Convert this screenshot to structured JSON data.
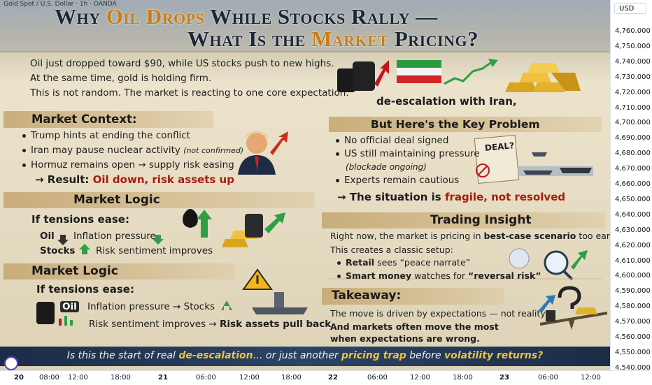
{
  "symbol": "Gold Spot / U.S. Dollar · 1h · OANDA",
  "currency": "USD",
  "price_axis": [
    "4,760.000",
    "4,750.000",
    "4,740.000",
    "4,730.000",
    "4,720.000",
    "4,710.000",
    "4,700.000",
    "4,690.000",
    "4,680.000",
    "4,670.000",
    "4,660.000",
    "4,650.000",
    "4,640.000",
    "4,630.000",
    "4,620.000",
    "4,610.000",
    "4,600.000",
    "4,590.000",
    "4,580.000",
    "4,570.000",
    "4,560.000",
    "4,550.000",
    "4,540.000"
  ],
  "time_axis": [
    "20",
    "08:00",
    "12:00",
    "18:00",
    "21",
    "06:00",
    "12:00",
    "18:00",
    "22",
    "06:00",
    "12:00",
    "18:00",
    "23",
    "06:00",
    "12:00"
  ],
  "title": {
    "line1": [
      "Why ",
      "Oil Drops",
      " While Stocks Rally —"
    ],
    "line2": [
      "What Is the ",
      "Market",
      " Pricing?"
    ]
  },
  "intro": {
    "lines": [
      "Oil just dropped toward $90, while US stocks push to new highs.",
      "At the same time, gold is holding firm.",
      "This is not random. The market is reacting to one core expectation:"
    ],
    "expectation": "de-escalation with Iran,"
  },
  "market_context": {
    "heading": "Market Context:",
    "bullets": [
      "Trump hints at ending the conflict",
      "Iran may pause nuclear activity",
      "Hormuz remains open → supply risk easing"
    ],
    "note": "(not confirmed)",
    "result_label": "→ Result: ",
    "result": "Oil down, risk assets up"
  },
  "key_problem": {
    "heading": "But Here's the Key Problem",
    "bullets": [
      "No official deal signed",
      "US still maintaining pressure",
      "Experts remain cautious"
    ],
    "note": "(blockade ongoing)",
    "sign": "DEAL?",
    "conclusion_label": "→ The situation is ",
    "conclusion": "fragile, not resolved"
  },
  "market_logic_1": {
    "heading": "Market Logic",
    "condition": "If tensions ease:",
    "rows": [
      [
        "Oil",
        "Inflation pressure"
      ],
      [
        "Stocks",
        "Risk sentiment improves"
      ]
    ]
  },
  "market_logic_2": {
    "heading": "Market Logic",
    "condition": "If tensions ease:",
    "badge": "Oil",
    "row1": "Inflation pressure → Stocks",
    "row2": [
      "Risk sentiment improves → ",
      "Risk assets pull back"
    ]
  },
  "trading_insight": {
    "heading": "Trading Insight",
    "line1": [
      "Right now, the market is pricing in ",
      "best-case scenario",
      " too early."
    ],
    "line2": "This creates a classic setup:",
    "bullet1": [
      "Retail",
      " sees “peace narrate”"
    ],
    "bullet2": [
      "Smart money",
      " watches for ",
      "“reversal risk”"
    ]
  },
  "takeaway": {
    "heading": "Takeaway:",
    "lines": [
      "The move is driven by expectations — not reality",
      "And markets often move the most",
      "when expectations are wrong."
    ]
  },
  "question": [
    "Is this the start of real ",
    "de-escalation",
    "… or just another ",
    "pricing trap",
    " before ",
    "volatility returns?"
  ]
}
